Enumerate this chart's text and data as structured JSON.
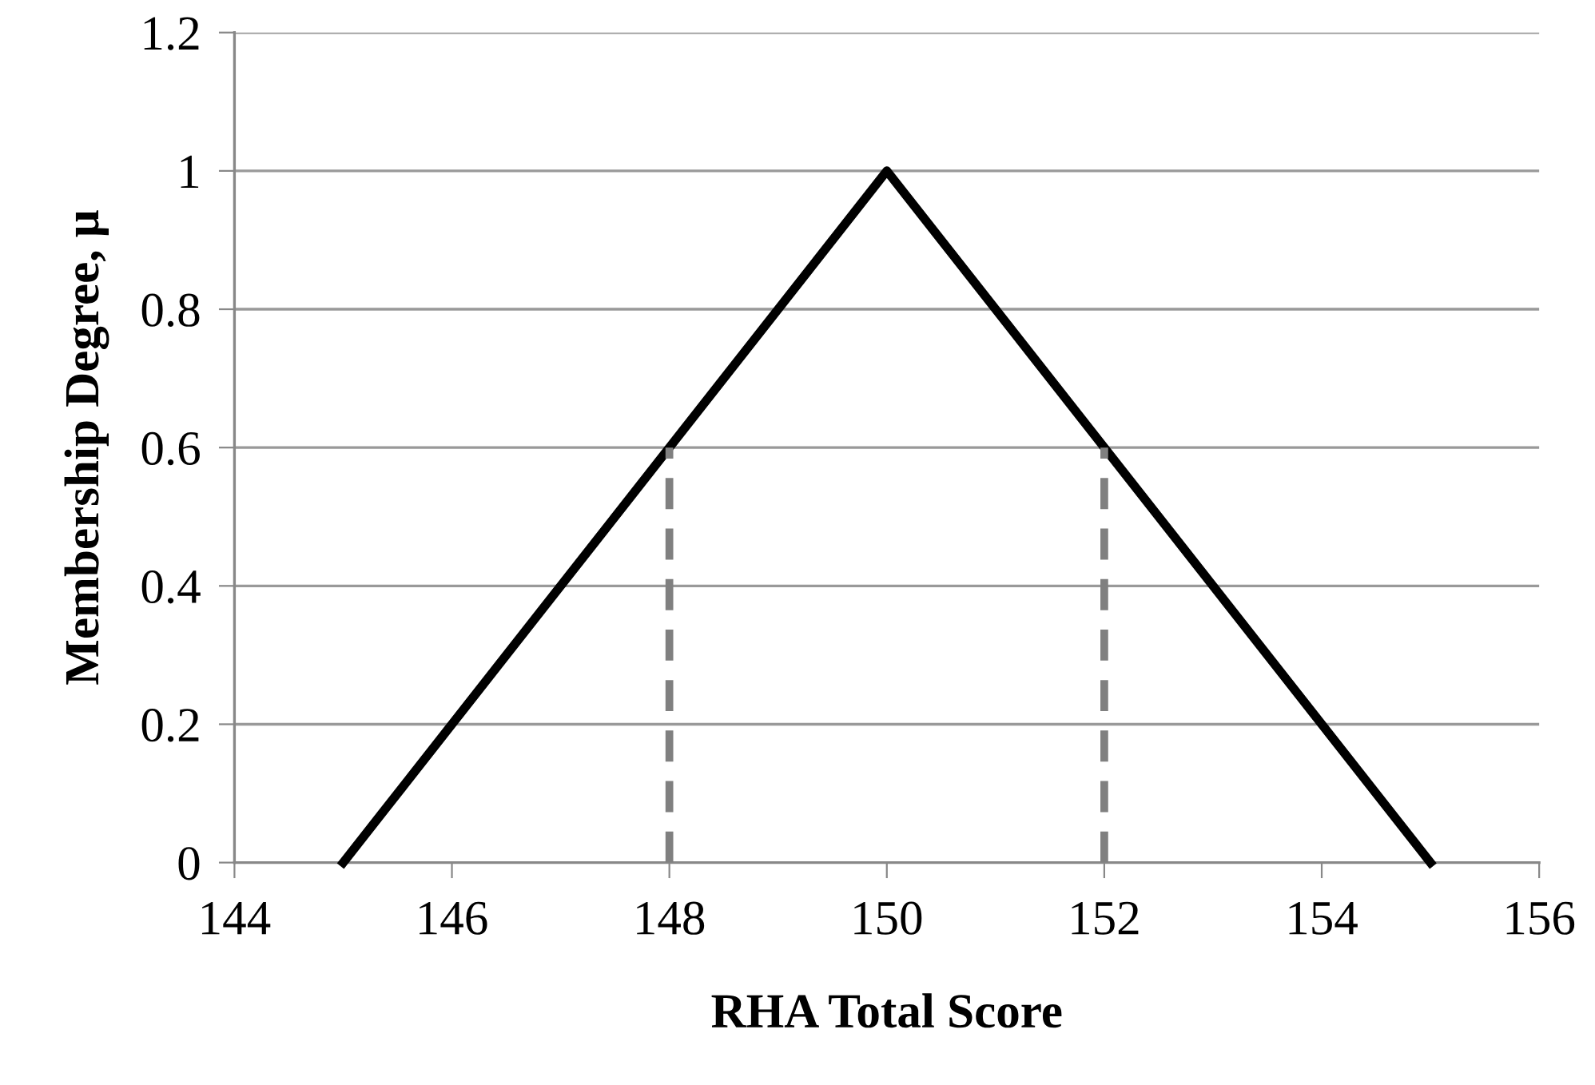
{
  "chart_data": {
    "type": "line",
    "xlabel": "RHA Total Score",
    "ylabel": "Membership Degree, μ",
    "xlim": [
      144,
      156
    ],
    "xticks": [
      144,
      146,
      148,
      150,
      152,
      154,
      156
    ],
    "ylim": [
      0,
      1.2
    ],
    "yticks": [
      0,
      0.2,
      0.4,
      0.6,
      0.8,
      1,
      1.2
    ],
    "grid": "y",
    "legend": false,
    "marker": "none",
    "series": [
      {
        "color": "#000000",
        "x": [
          145,
          150,
          155
        ],
        "values": [
          0,
          1,
          0
        ],
        "line_style": "solid"
      },
      {
        "color": "#808080",
        "x": [
          148,
          148
        ],
        "values": [
          0,
          0.6
        ],
        "line_style": "dashed"
      },
      {
        "color": "#808080",
        "x": [
          152,
          152
        ],
        "values": [
          0,
          0.6
        ],
        "line_style": "dashed"
      }
    ]
  }
}
